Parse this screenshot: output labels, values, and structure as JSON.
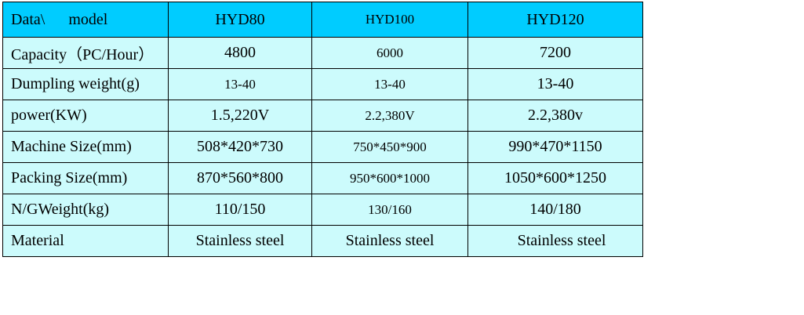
{
  "table": {
    "header": {
      "corner_left": "Data\\",
      "corner_right": "model",
      "models": [
        "HYD80",
        "HYD100",
        "HYD120"
      ]
    },
    "rows": [
      {
        "label": "Capacity（PC/Hour）",
        "values": [
          "4800",
          "6000",
          "7200"
        ]
      },
      {
        "label": "Dumpling weight(g)",
        "values": [
          "13-40",
          "13-40",
          "13-40"
        ]
      },
      {
        "label": "power(KW)",
        "values": [
          "1.5,220V",
          "2.2,380V",
          "2.2,380v"
        ]
      },
      {
        "label": "Machine Size(mm)",
        "values": [
          "508*420*730",
          "750*450*900",
          "990*470*1150"
        ]
      },
      {
        "label": "Packing Size(mm)",
        "values": [
          "870*560*800",
          "950*600*1000",
          "1050*600*1250"
        ]
      },
      {
        "label": "N/GWeight(kg)",
        "values": [
          "110/150",
          "130/160",
          "140/180"
        ]
      },
      {
        "label": "Material",
        "values": [
          "Stainless steel",
          "Stainless steel",
          "Stainless steel"
        ]
      }
    ]
  },
  "colors": {
    "header_bg": "#00ccff",
    "body_bg": "#ccfbfc",
    "border": "#000000"
  }
}
